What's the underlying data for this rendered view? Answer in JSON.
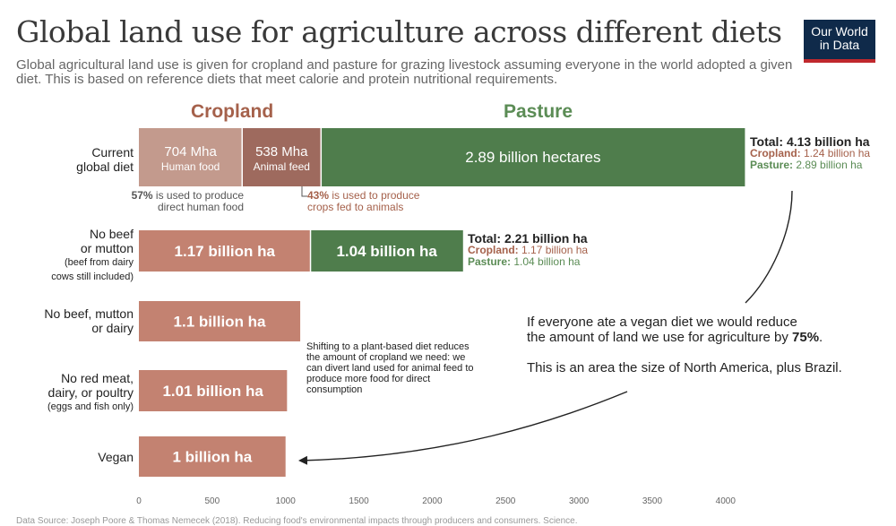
{
  "title": "Global land use for agriculture across different diets",
  "subtitle": "Global agricultural land use is given for cropland and pasture for grazing livestock assuming everyone in the world adopted a given diet. This is based on reference diets that meet calorie and protein nutritional requirements.",
  "logo": {
    "line1": "Our World",
    "line2": "in Data"
  },
  "legend": {
    "cropland": "Cropland",
    "pasture": "Pasture"
  },
  "colors": {
    "human_food": "#c39a8d",
    "animal_feed": "#9e6a5e",
    "cropland": "#c38271",
    "pasture": "#4f7d4c",
    "cropland_text": "#a5614b",
    "pasture_text": "#5b8c55"
  },
  "row_labels": {
    "current": {
      "line1": "Current",
      "line2": "global diet"
    },
    "no_beef": {
      "line1": "No beef",
      "line2": "or mutton",
      "line3": "(beef from dairy",
      "line4": "cows still included)"
    },
    "no_beef_dairy": {
      "line1": "No beef, mutton",
      "line2": "or dairy"
    },
    "no_red_meat": {
      "line1": "No red meat,",
      "line2": "dairy, or poultry",
      "line3": "(eggs and fish only)"
    },
    "vegan": {
      "line1": "Vegan"
    }
  },
  "bar_labels": {
    "human_food_value": "704 Mha",
    "human_food_name": "Human food",
    "animal_feed_value": "538 Mha",
    "animal_feed_name": "Animal feed",
    "current_pasture": "2.89 billion hectares",
    "no_beef_cropland": "1.17 billion ha",
    "no_beef_pasture": "1.04 billion ha",
    "no_beef_dairy": "1.1 billion ha",
    "no_red_meat": "1.01 billion ha",
    "vegan": "1 billion ha"
  },
  "annotations": {
    "human_pct": "57%",
    "human_text_1": " is used to produce",
    "human_text_2": "direct human food",
    "animal_pct": "43%",
    "animal_text_1": " is used to produce",
    "animal_text_2": "crops fed to animals"
  },
  "totals": {
    "current": {
      "total": "Total: 4.13 billion ha",
      "crop_label": "Cropland:",
      "crop_value": " 1.24 billion ha",
      "pasture_label": "Pasture:",
      "pasture_value": " 2.89 billion ha"
    },
    "no_beef": {
      "total": "Total: 2.21 billion ha",
      "crop_label": "Cropland:",
      "crop_value": " 1.17 billion ha",
      "pasture_label": "Pasture:",
      "pasture_value": " 1.04 billion ha"
    }
  },
  "callout": {
    "line1": "If everyone ate a vegan diet we would reduce",
    "line2_a": "the amount of land we use for agriculture by ",
    "line2_b": "75%",
    "line2_c": ".",
    "line3": "This is an area the size of North America, plus Brazil."
  },
  "shift_note": "Shifting to a plant-based diet reduces the amount of cropland we need: we can divert land used for animal feed to produce more food for direct consumption",
  "source": "Data Source: Joseph Poore & Thomas Nemecek (2018). Reducing food's environmental impacts through producers and consumers. Science.",
  "chart_data": {
    "type": "bar",
    "orientation": "horizontal",
    "stacked": true,
    "units": "million hectares",
    "categories": [
      "Current global diet",
      "No beef or mutton",
      "No beef, mutton or dairy",
      "No red meat, dairy, or poultry",
      "Vegan"
    ],
    "series": [
      {
        "name": "Human food",
        "values": [
          704,
          1170,
          1100,
          1010,
          1000
        ]
      },
      {
        "name": "Animal feed",
        "values": [
          538,
          0,
          0,
          0,
          0
        ]
      },
      {
        "name": "Pasture",
        "values": [
          2890,
          1040,
          0,
          0,
          0
        ]
      }
    ],
    "xticks": [
      0,
      500,
      1000,
      1500,
      2000,
      2500,
      3000,
      3500,
      4000
    ],
    "xlim": [
      0,
      4130
    ],
    "grid": false,
    "legend": "top"
  }
}
